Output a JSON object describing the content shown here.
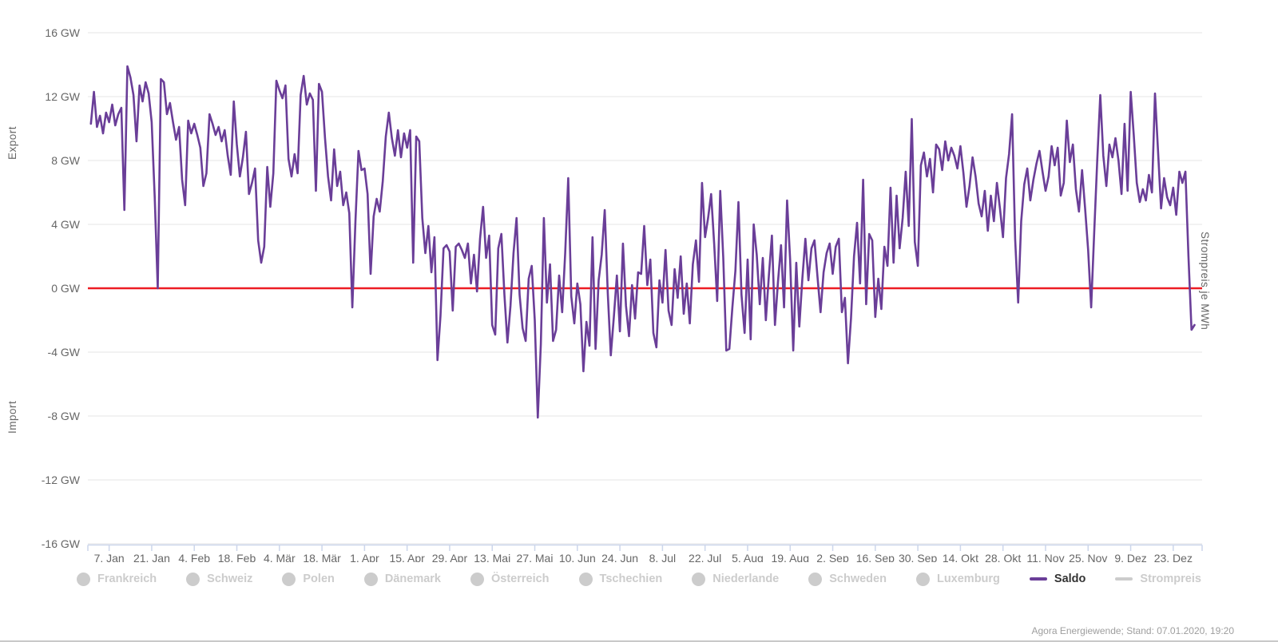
{
  "chart_data": {
    "type": "line",
    "title": "",
    "y_axis": {
      "top_label": "Export",
      "bottom_label": "Import",
      "ticks": [
        16,
        12,
        8,
        4,
        0,
        -4,
        -8,
        -12,
        -16
      ],
      "tick_label_suffix": " GW",
      "ylim": [
        -16,
        16
      ],
      "grid": true
    },
    "x_axis": {
      "tick_labels": [
        "7. Jan",
        "21. Jan",
        "4. Feb",
        "18. Feb",
        "4. Mär",
        "18. Mär",
        "1. Apr",
        "15. Apr",
        "29. Apr",
        "13. Mai",
        "27. Mai",
        "10. Jun",
        "24. Jun",
        "8. Jul",
        "22. Jul",
        "5. Aug",
        "19. Aug",
        "2. Sep",
        "16. Sep",
        "30. Sep",
        "14. Okt",
        "28. Okt",
        "11. Nov",
        "25. Nov",
        "9. Dez",
        "23. Dez"
      ],
      "first_tick_day_of_year": 7,
      "tick_interval_days": 14,
      "day_range": [
        0,
        366.5
      ]
    },
    "right_axis_label": "Strompreis je MWh",
    "zero_line": {
      "value": 0,
      "color": "#ed1c24"
    },
    "series": [
      {
        "name": "Saldo",
        "unit": "GW",
        "color": "#6a3e98",
        "start_day_of_year": 1,
        "values": [
          10.3,
          12.3,
          10.1,
          10.8,
          9.7,
          11.0,
          10.4,
          11.5,
          10.2,
          10.9,
          11.3,
          4.9,
          13.9,
          13.2,
          12.1,
          9.2,
          12.7,
          11.7,
          12.9,
          12.2,
          10.4,
          5.7,
          0.0,
          13.1,
          12.9,
          10.9,
          11.6,
          10.4,
          9.3,
          10.1,
          6.8,
          5.2,
          10.5,
          9.7,
          10.3,
          9.6,
          8.8,
          6.4,
          7.2,
          10.9,
          10.3,
          9.6,
          10.1,
          9.2,
          9.9,
          8.3,
          7.1,
          11.7,
          9.0,
          7.0,
          8.2,
          9.8,
          5.9,
          6.6,
          7.5,
          3.0,
          1.6,
          2.6,
          7.6,
          5.1,
          7.2,
          13.0,
          12.4,
          11.9,
          12.7,
          8.1,
          7.0,
          8.4,
          7.2,
          12.1,
          13.3,
          11.5,
          12.2,
          11.8,
          6.1,
          12.8,
          12.3,
          9.4,
          7.0,
          5.5,
          8.7,
          6.4,
          7.3,
          5.2,
          6.0,
          4.7,
          -1.2,
          4.2,
          8.6,
          7.4,
          7.5,
          5.9,
          0.9,
          4.5,
          5.6,
          4.8,
          6.7,
          9.5,
          11.0,
          9.4,
          8.3,
          9.9,
          8.2,
          9.7,
          8.8,
          9.9,
          1.6,
          9.5,
          9.2,
          4.4,
          2.2,
          3.9,
          1.0,
          3.2,
          -4.5,
          -1.7,
          2.5,
          2.7,
          2.3,
          -1.4,
          2.6,
          2.8,
          2.4,
          1.9,
          2.8,
          0.3,
          2.1,
          -0.2,
          3.1,
          5.1,
          1.9,
          3.3,
          -2.3,
          -2.9,
          2.5,
          3.4,
          -0.4,
          -3.4,
          -1.1,
          2.2,
          4.4,
          -0.4,
          -2.5,
          -3.3,
          0.6,
          1.4,
          -2.0,
          -8.1,
          -3.5,
          4.4,
          -0.9,
          1.5,
          -3.3,
          -2.6,
          0.8,
          -1.5,
          2.2,
          6.9,
          -0.5,
          -2.2,
          0.3,
          -1.0,
          -5.2,
          -2.1,
          -3.6,
          3.2,
          -3.8,
          0.5,
          2.1,
          4.9,
          -0.3,
          -4.2,
          -1.8,
          0.8,
          -2.7,
          2.8,
          -1.1,
          -3.0,
          0.2,
          -1.9,
          1.0,
          0.9,
          3.9,
          0.2,
          1.8,
          -2.8,
          -3.7,
          0.5,
          -0.9,
          2.4,
          -1.4,
          -2.3,
          1.2,
          -0.6,
          2.0,
          -1.6,
          0.3,
          -2.2,
          1.5,
          3.0,
          0.4,
          6.6,
          3.2,
          4.4,
          5.9,
          2.8,
          -0.8,
          6.1,
          1.9,
          -3.9,
          -3.8,
          -1.2,
          1.1,
          5.4,
          -0.4,
          -2.8,
          1.8,
          -3.2,
          4.0,
          2.1,
          -1.0,
          1.9,
          -2.0,
          0.8,
          3.3,
          -2.3,
          0.4,
          2.7,
          -1.2,
          5.5,
          1.8,
          -3.9,
          1.6,
          -2.4,
          0.6,
          3.1,
          0.5,
          2.5,
          3.0,
          0.7,
          -1.5,
          1.0,
          2.2,
          2.8,
          0.9,
          2.6,
          3.1,
          -1.5,
          -0.6,
          -4.7,
          -1.9,
          2.0,
          4.1,
          0.3,
          6.8,
          -1.0,
          3.4,
          3.0,
          -1.8,
          0.6,
          -1.3,
          2.6,
          1.4,
          6.3,
          1.6,
          5.8,
          2.5,
          4.4,
          7.3,
          3.9,
          10.6,
          2.9,
          1.4,
          7.7,
          8.5,
          7.0,
          8.1,
          6.0,
          9.0,
          8.7,
          7.4,
          9.2,
          8.0,
          8.8,
          8.3,
          7.5,
          8.9,
          7.2,
          5.1,
          6.4,
          8.2,
          7.0,
          5.3,
          4.5,
          6.1,
          3.6,
          5.8,
          4.2,
          6.6,
          5.0,
          3.2,
          6.9,
          8.4,
          10.9,
          3.1,
          -0.9,
          4.2,
          6.5,
          7.5,
          5.5,
          6.8,
          7.8,
          8.6,
          7.3,
          6.1,
          7.0,
          8.9,
          7.7,
          8.8,
          5.8,
          6.6,
          10.5,
          7.9,
          9.0,
          6.2,
          4.8,
          7.4,
          5.0,
          2.4,
          -1.2,
          3.5,
          8.0,
          12.1,
          8.3,
          6.4,
          9.0,
          8.2,
          9.4,
          8.0,
          5.9,
          10.3,
          6.1,
          12.3,
          9.6,
          6.6,
          5.4,
          6.2,
          5.5,
          7.1,
          6.0,
          12.2,
          8.6,
          5.0,
          6.9,
          5.7,
          5.2,
          6.3,
          4.6,
          7.3,
          6.6,
          7.3,
          2.0,
          -2.6,
          -2.3
        ]
      }
    ],
    "legend_position": "bottom"
  },
  "legend": {
    "items": [
      {
        "label": "Frankreich",
        "marker": "circle",
        "state": "disabled"
      },
      {
        "label": "Schweiz",
        "marker": "circle",
        "state": "disabled"
      },
      {
        "label": "Polen",
        "marker": "circle",
        "state": "disabled"
      },
      {
        "label": "Dänemark",
        "marker": "circle",
        "state": "disabled"
      },
      {
        "label": "Österreich",
        "marker": "circle",
        "state": "disabled"
      },
      {
        "label": "Tschechien",
        "marker": "circle",
        "state": "disabled"
      },
      {
        "label": "Niederlande",
        "marker": "circle",
        "state": "disabled"
      },
      {
        "label": "Schweden",
        "marker": "circle",
        "state": "disabled"
      },
      {
        "label": "Luxemburg",
        "marker": "circle",
        "state": "disabled"
      },
      {
        "label": "Saldo",
        "marker": "line",
        "state": "active",
        "color": "#6a3e98"
      },
      {
        "label": "Strompreis",
        "marker": "line",
        "state": "disabled",
        "color": "#cccccc"
      }
    ]
  },
  "footer": {
    "attribution": "Agora Energiewende; Stand: 07.01.2020, 19:20"
  },
  "colors": {
    "background": "#ffffff",
    "gridline": "#e6e6e6",
    "axis_line": "#ccd6eb",
    "tick": "#ccd6eb",
    "axis_label": "#666666",
    "saldo": "#6a3e98",
    "zero_line": "#ed1c24",
    "legend_disabled": "#cccccc",
    "legend_active_text": "#333333",
    "attribution_text": "#9e9e9e"
  }
}
